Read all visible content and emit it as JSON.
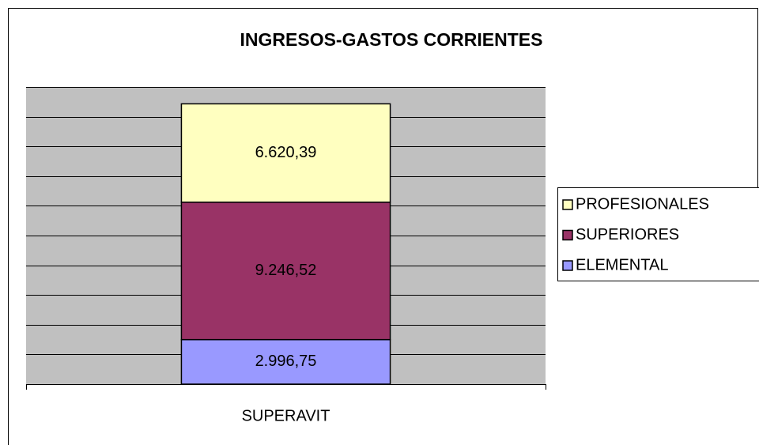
{
  "chart_data": {
    "type": "stacked_bar",
    "title": "INGRESOS-GASTOS CORRIENTES",
    "categories": [
      "SUPERAVIT"
    ],
    "series": [
      {
        "name": "ELEMENTAL",
        "color": "#9999ff",
        "values": [
          2996.75
        ],
        "value_labels": [
          "2.996,75"
        ]
      },
      {
        "name": "SUPERIORES",
        "color": "#993366",
        "values": [
          9246.52
        ],
        "value_labels": [
          "9.246,52"
        ]
      },
      {
        "name": "PROFESIONALES",
        "color": "#ffffc0",
        "values": [
          6620.39
        ],
        "value_labels": [
          "6.620,39"
        ]
      }
    ],
    "ylim": [
      0,
      20000
    ],
    "yticks": [
      0,
      2000,
      4000,
      6000,
      8000,
      10000,
      12000,
      14000,
      16000,
      18000,
      20000
    ],
    "grid": true,
    "legend": "right"
  }
}
